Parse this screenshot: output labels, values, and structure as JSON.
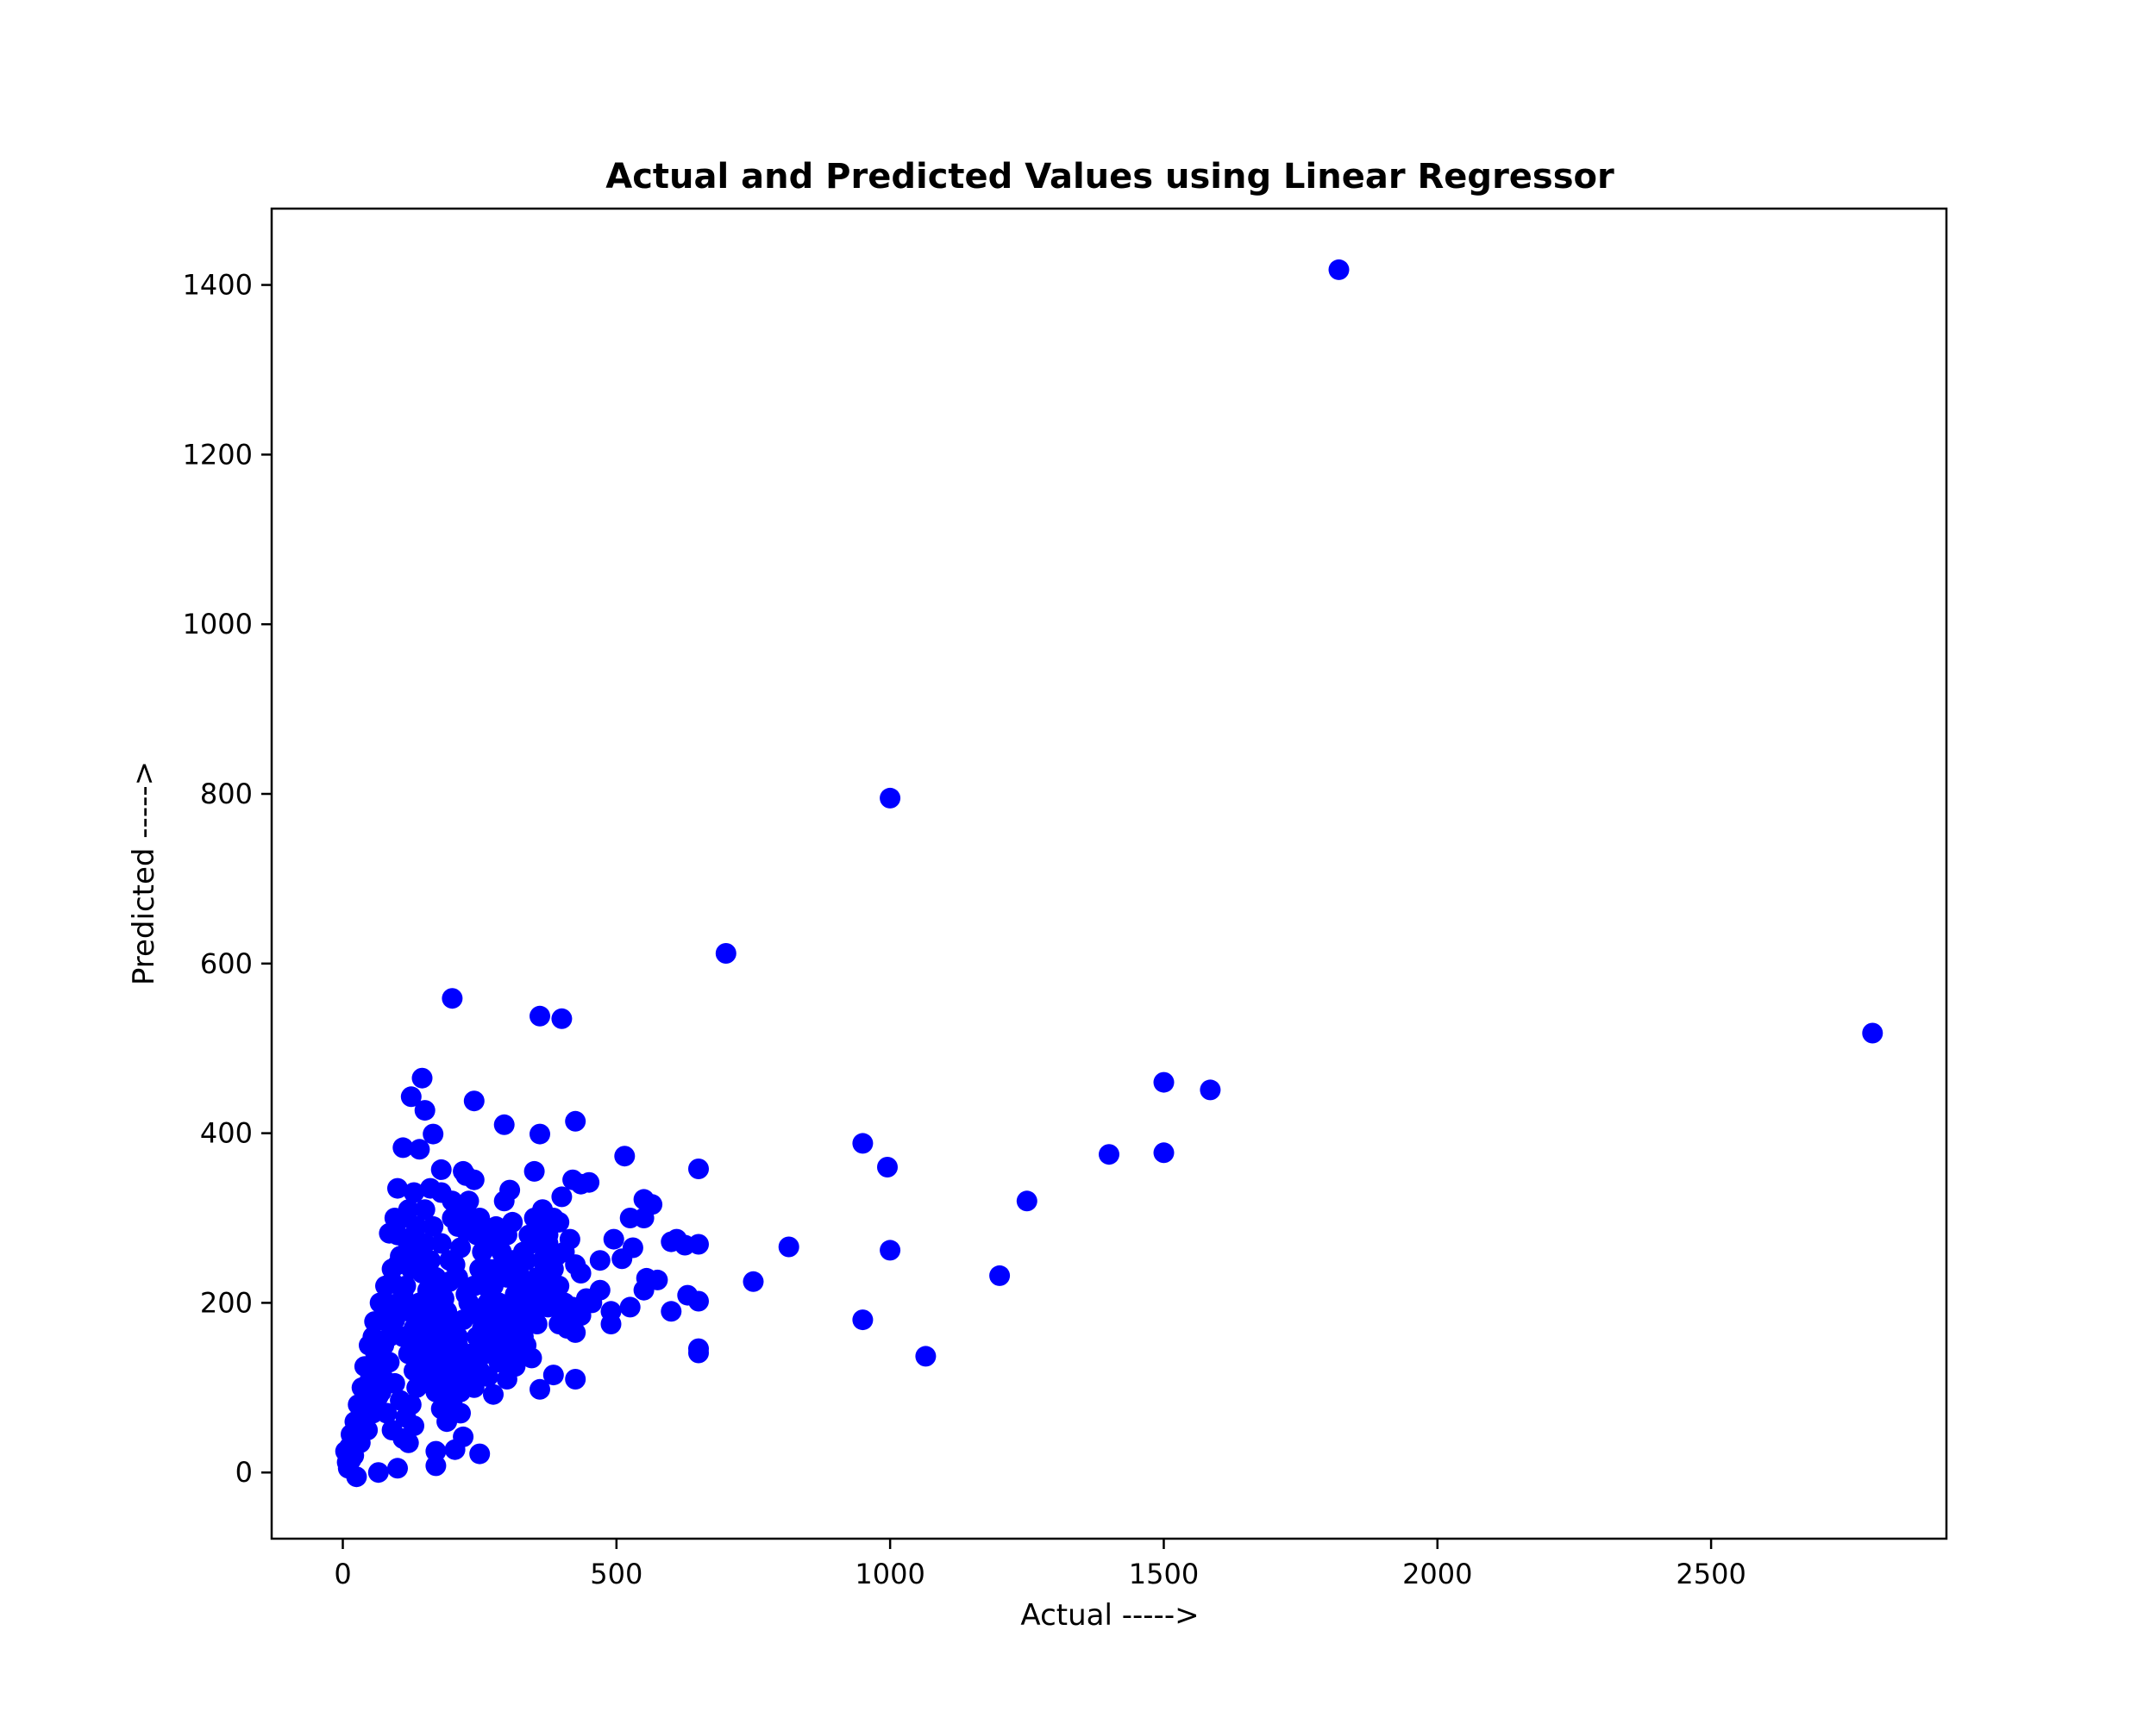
{
  "chart_data": {
    "type": "scatter",
    "title": "Actual and Predicted Values using Linear Regressor",
    "xlabel": "Actual ----->",
    "ylabel": "Predicted ----->",
    "xlim": [
      -130,
      2930
    ],
    "ylim": [
      -78,
      1490
    ],
    "xticks": [
      0,
      500,
      1000,
      1500,
      2000,
      2500
    ],
    "yticks": [
      0,
      200,
      400,
      600,
      800,
      1000,
      1200,
      1400
    ],
    "grid": false,
    "legend": "none",
    "marker_color": "#0000ff",
    "series": [
      {
        "points": [
          [
            1820,
            1418
          ],
          [
            1000,
            795
          ],
          [
            700,
            612
          ],
          [
            2795,
            518
          ],
          [
            200,
            559
          ],
          [
            360,
            538
          ],
          [
            400,
            535
          ],
          [
            145,
            465
          ],
          [
            125,
            443
          ],
          [
            150,
            427
          ],
          [
            240,
            438
          ],
          [
            165,
            399
          ],
          [
            295,
            410
          ],
          [
            360,
            399
          ],
          [
            425,
            414
          ],
          [
            110,
            383
          ],
          [
            140,
            381
          ],
          [
            180,
            357
          ],
          [
            225,
            350
          ],
          [
            515,
            373
          ],
          [
            650,
            358
          ],
          [
            950,
            388
          ],
          [
            995,
            360
          ],
          [
            1400,
            375
          ],
          [
            1500,
            377
          ],
          [
            1500,
            460
          ],
          [
            1585,
            451
          ],
          [
            1250,
            320
          ],
          [
            1200,
            232
          ],
          [
            1000,
            262
          ],
          [
            950,
            180
          ],
          [
            1065,
            137
          ],
          [
            815,
            266
          ],
          [
            750,
            225
          ],
          [
            650,
            269
          ],
          [
            650,
            202
          ],
          [
            650,
            146
          ],
          [
            650,
            141
          ],
          [
            600,
            272
          ],
          [
            610,
            275
          ],
          [
            625,
            268
          ],
          [
            600,
            190
          ],
          [
            630,
            209
          ],
          [
            550,
            322
          ],
          [
            565,
            316
          ],
          [
            550,
            300
          ],
          [
            525,
            300
          ],
          [
            530,
            265
          ],
          [
            510,
            252
          ],
          [
            495,
            275
          ],
          [
            575,
            227
          ],
          [
            555,
            229
          ],
          [
            550,
            215
          ],
          [
            525,
            195
          ],
          [
            490,
            190
          ],
          [
            490,
            175
          ],
          [
            470,
            250
          ],
          [
            470,
            215
          ],
          [
            450,
            342
          ],
          [
            435,
            340
          ],
          [
            420,
            345
          ],
          [
            400,
            325
          ],
          [
            350,
            355
          ],
          [
            305,
            333
          ],
          [
            295,
            320
          ],
          [
            240,
            345
          ],
          [
            220,
            355
          ],
          [
            180,
            330
          ],
          [
            200,
            320
          ],
          [
            160,
            335
          ],
          [
            130,
            330
          ],
          [
            100,
            335
          ],
          [
            95,
            300
          ],
          [
            85,
            282
          ],
          [
            425,
            110
          ],
          [
            385,
            115
          ],
          [
            360,
            98
          ],
          [
            345,
            135
          ],
          [
            330,
            160
          ],
          [
            275,
            92
          ],
          [
            265,
            113
          ],
          [
            250,
            22
          ],
          [
            215,
            70
          ],
          [
            220,
            42
          ],
          [
            205,
            27
          ],
          [
            170,
            25
          ],
          [
            170,
            8
          ],
          [
            100,
            5
          ],
          [
            65,
            0
          ],
          [
            25,
            -5
          ],
          [
            15,
            15
          ],
          [
            10,
            5
          ],
          [
            5,
            25
          ],
          [
            15,
            45
          ],
          [
            30,
            60
          ],
          [
            40,
            85
          ],
          [
            50,
            110
          ],
          [
            60,
            140
          ],
          [
            55,
            160
          ],
          [
            70,
            180
          ],
          [
            80,
            200
          ],
          [
            90,
            225
          ],
          [
            100,
            245
          ],
          [
            110,
            210
          ],
          [
            120,
            190
          ],
          [
            130,
            170
          ],
          [
            140,
            150
          ],
          [
            150,
            130
          ],
          [
            160,
            110
          ],
          [
            170,
            95
          ],
          [
            180,
            75
          ],
          [
            190,
            60
          ],
          [
            130,
            55
          ],
          [
            120,
            35
          ],
          [
            110,
            40
          ],
          [
            90,
            50
          ],
          [
            80,
            70
          ],
          [
            70,
            95
          ],
          [
            60,
            120
          ],
          [
            75,
            150
          ],
          [
            85,
            130
          ],
          [
            95,
            105
          ],
          [
            105,
            85
          ],
          [
            115,
            65
          ],
          [
            125,
            80
          ],
          [
            135,
            100
          ],
          [
            145,
            120
          ],
          [
            155,
            140
          ],
          [
            165,
            165
          ],
          [
            175,
            185
          ],
          [
            185,
            205
          ],
          [
            195,
            225
          ],
          [
            205,
            245
          ],
          [
            215,
            265
          ],
          [
            225,
            285
          ],
          [
            235,
            300
          ],
          [
            245,
            280
          ],
          [
            255,
            260
          ],
          [
            265,
            240
          ],
          [
            275,
            220
          ],
          [
            285,
            200
          ],
          [
            295,
            180
          ],
          [
            305,
            160
          ],
          [
            315,
            140
          ],
          [
            325,
            170
          ],
          [
            335,
            190
          ],
          [
            345,
            210
          ],
          [
            355,
            230
          ],
          [
            365,
            250
          ],
          [
            375,
            270
          ],
          [
            385,
            240
          ],
          [
            395,
            220
          ],
          [
            405,
            200
          ],
          [
            415,
            180
          ],
          [
            425,
            165
          ],
          [
            435,
            185
          ],
          [
            445,
            205
          ],
          [
            455,
            200
          ],
          [
            395,
            175
          ],
          [
            375,
            195
          ],
          [
            355,
            175
          ],
          [
            335,
            150
          ],
          [
            315,
            125
          ],
          [
            300,
            110
          ],
          [
            285,
            130
          ],
          [
            270,
            150
          ],
          [
            255,
            170
          ],
          [
            240,
            190
          ],
          [
            225,
            210
          ],
          [
            210,
            230
          ],
          [
            195,
            250
          ],
          [
            180,
            270
          ],
          [
            165,
            290
          ],
          [
            150,
            310
          ],
          [
            135,
            290
          ],
          [
            120,
            270
          ],
          [
            105,
            255
          ],
          [
            90,
            240
          ],
          [
            78,
            220
          ],
          [
            68,
            200
          ],
          [
            58,
            178
          ],
          [
            48,
            150
          ],
          [
            40,
            125
          ],
          [
            35,
            100
          ],
          [
            28,
            80
          ],
          [
            22,
            60
          ],
          [
            18,
            40
          ],
          [
            12,
            30
          ],
          [
            8,
            12
          ],
          [
            20,
            20
          ],
          [
            32,
            35
          ],
          [
            45,
            50
          ],
          [
            55,
            70
          ],
          [
            65,
            90
          ],
          [
            75,
            110
          ],
          [
            85,
            160
          ],
          [
            95,
            180
          ],
          [
            105,
            200
          ],
          [
            115,
            220
          ],
          [
            125,
            240
          ],
          [
            135,
            255
          ],
          [
            145,
            235
          ],
          [
            155,
            215
          ],
          [
            165,
            195
          ],
          [
            175,
            175
          ],
          [
            185,
            155
          ],
          [
            195,
            135
          ],
          [
            205,
            115
          ],
          [
            215,
            95
          ],
          [
            225,
            120
          ],
          [
            235,
            140
          ],
          [
            245,
            160
          ],
          [
            255,
            180
          ],
          [
            265,
            200
          ],
          [
            275,
            190
          ],
          [
            285,
            170
          ],
          [
            295,
            150
          ],
          [
            305,
            190
          ],
          [
            315,
            210
          ],
          [
            325,
            230
          ],
          [
            335,
            250
          ],
          [
            345,
            270
          ],
          [
            355,
            290
          ],
          [
            365,
            310
          ],
          [
            375,
            280
          ],
          [
            385,
            300
          ],
          [
            395,
            295
          ],
          [
            405,
            260
          ],
          [
            415,
            275
          ],
          [
            425,
            245
          ],
          [
            435,
            235
          ],
          [
            110,
            160
          ],
          [
            120,
            140
          ],
          [
            130,
            120
          ],
          [
            140,
            200
          ],
          [
            150,
            180
          ],
          [
            160,
            160
          ],
          [
            170,
            140
          ],
          [
            180,
            120
          ],
          [
            190,
            100
          ],
          [
            200,
            85
          ],
          [
            210,
            160
          ],
          [
            220,
            180
          ],
          [
            230,
            200
          ],
          [
            240,
            220
          ],
          [
            250,
            240
          ],
          [
            260,
            220
          ],
          [
            270,
            205
          ],
          [
            280,
            185
          ],
          [
            290,
            165
          ],
          [
            300,
            145
          ],
          [
            310,
            180
          ],
          [
            320,
            200
          ],
          [
            330,
            215
          ],
          [
            340,
            195
          ],
          [
            350,
            185
          ],
          [
            360,
            205
          ],
          [
            370,
            225
          ],
          [
            380,
            215
          ],
          [
            390,
            205
          ],
          [
            400,
            190
          ],
          [
            410,
            170
          ],
          [
            420,
            195
          ],
          [
            100,
            280
          ],
          [
            110,
            300
          ],
          [
            120,
            310
          ],
          [
            130,
            280
          ],
          [
            140,
            260
          ],
          [
            150,
            270
          ],
          [
            160,
            250
          ],
          [
            170,
            230
          ],
          [
            180,
            210
          ],
          [
            190,
            190
          ],
          [
            200,
            170
          ],
          [
            210,
            150
          ],
          [
            220,
            130
          ],
          [
            230,
            110
          ],
          [
            240,
            100
          ],
          [
            250,
            120
          ],
          [
            260,
            140
          ],
          [
            270,
            160
          ],
          [
            280,
            240
          ],
          [
            290,
            260
          ],
          [
            300,
            230
          ],
          [
            310,
            250
          ],
          [
            320,
            240
          ],
          [
            330,
            260
          ],
          [
            340,
            280
          ],
          [
            350,
            300
          ],
          [
            360,
            270
          ],
          [
            370,
            250
          ],
          [
            380,
            235
          ],
          [
            390,
            255
          ],
          [
            300,
            280
          ],
          [
            310,
            295
          ],
          [
            250,
            300
          ],
          [
            260,
            280
          ],
          [
            270,
            270
          ],
          [
            280,
            290
          ],
          [
            220,
            305
          ],
          [
            230,
            320
          ],
          [
            200,
            300
          ],
          [
            210,
            290
          ]
        ]
      }
    ]
  }
}
